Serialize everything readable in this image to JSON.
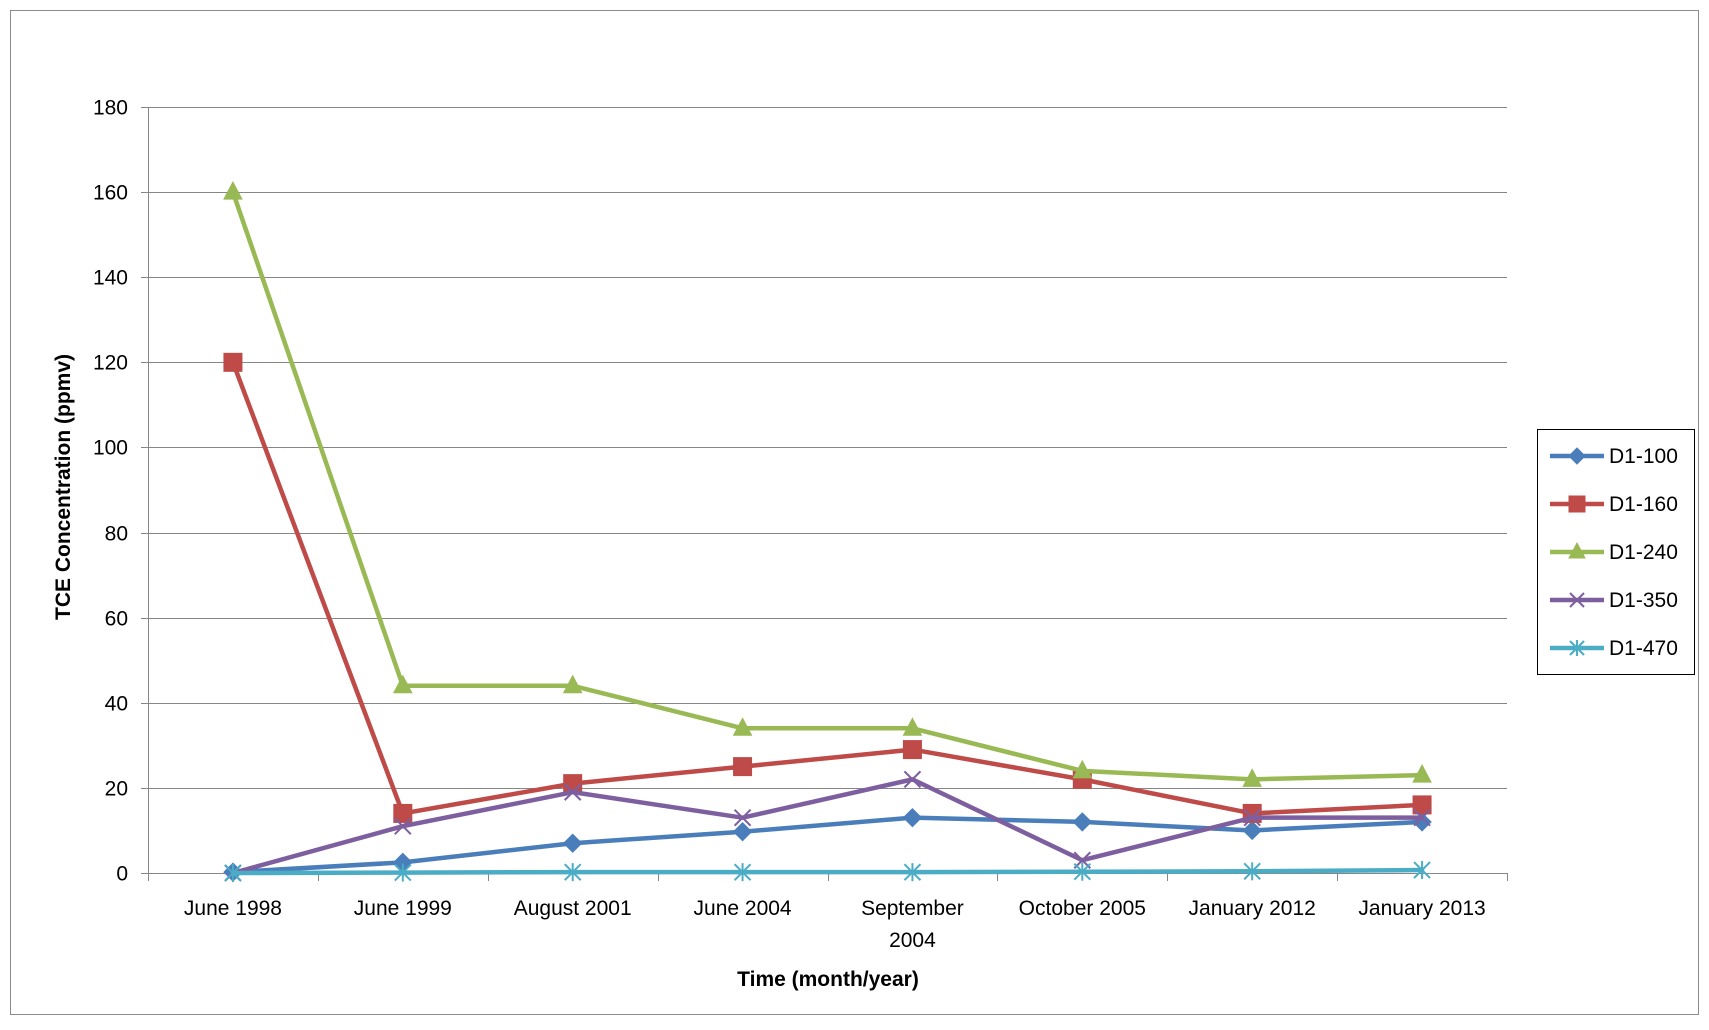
{
  "chart_data": {
    "type": "line",
    "title": "",
    "xlabel": "Time  (month/year)",
    "ylabel": "TCE Concentration (ppmv)",
    "categories": [
      "June 1998",
      "June 1999",
      "August 2001",
      "June 2004",
      "September 2004",
      "October 2005",
      "January 2012",
      "January 2013"
    ],
    "category_lines": [
      [
        "June 1998"
      ],
      [
        "June 1999"
      ],
      [
        "August 2001"
      ],
      [
        "June 2004"
      ],
      [
        "September",
        "2004"
      ],
      [
        "October 2005"
      ],
      [
        "January 2012"
      ],
      [
        "January 2013"
      ]
    ],
    "ylim": [
      0,
      180
    ],
    "yticks": [
      0,
      20,
      40,
      60,
      80,
      100,
      120,
      140,
      160,
      180
    ],
    "grid": true,
    "legend_position": "right",
    "series": [
      {
        "name": "D1-100",
        "color": "#4A7EBB",
        "marker": "diamond",
        "values": [
          0.2,
          2.5,
          7,
          9.7,
          13,
          12,
          10,
          12
        ]
      },
      {
        "name": "D1-160",
        "color": "#BE4B48",
        "marker": "square",
        "values": [
          120,
          14,
          21,
          25,
          29,
          22,
          14,
          16
        ]
      },
      {
        "name": "D1-240",
        "color": "#98B954",
        "marker": "triangle",
        "values": [
          160,
          44,
          44,
          34,
          34,
          24,
          22,
          23
        ]
      },
      {
        "name": "D1-350",
        "color": "#7D5FA0",
        "marker": "x",
        "values": [
          0,
          11,
          19,
          13,
          22,
          3,
          13,
          13
        ]
      },
      {
        "name": "D1-470",
        "color": "#4BACC6",
        "marker": "star",
        "values": [
          0,
          0.1,
          0.2,
          0.2,
          0.2,
          0.3,
          0.4,
          0.7
        ]
      }
    ]
  }
}
